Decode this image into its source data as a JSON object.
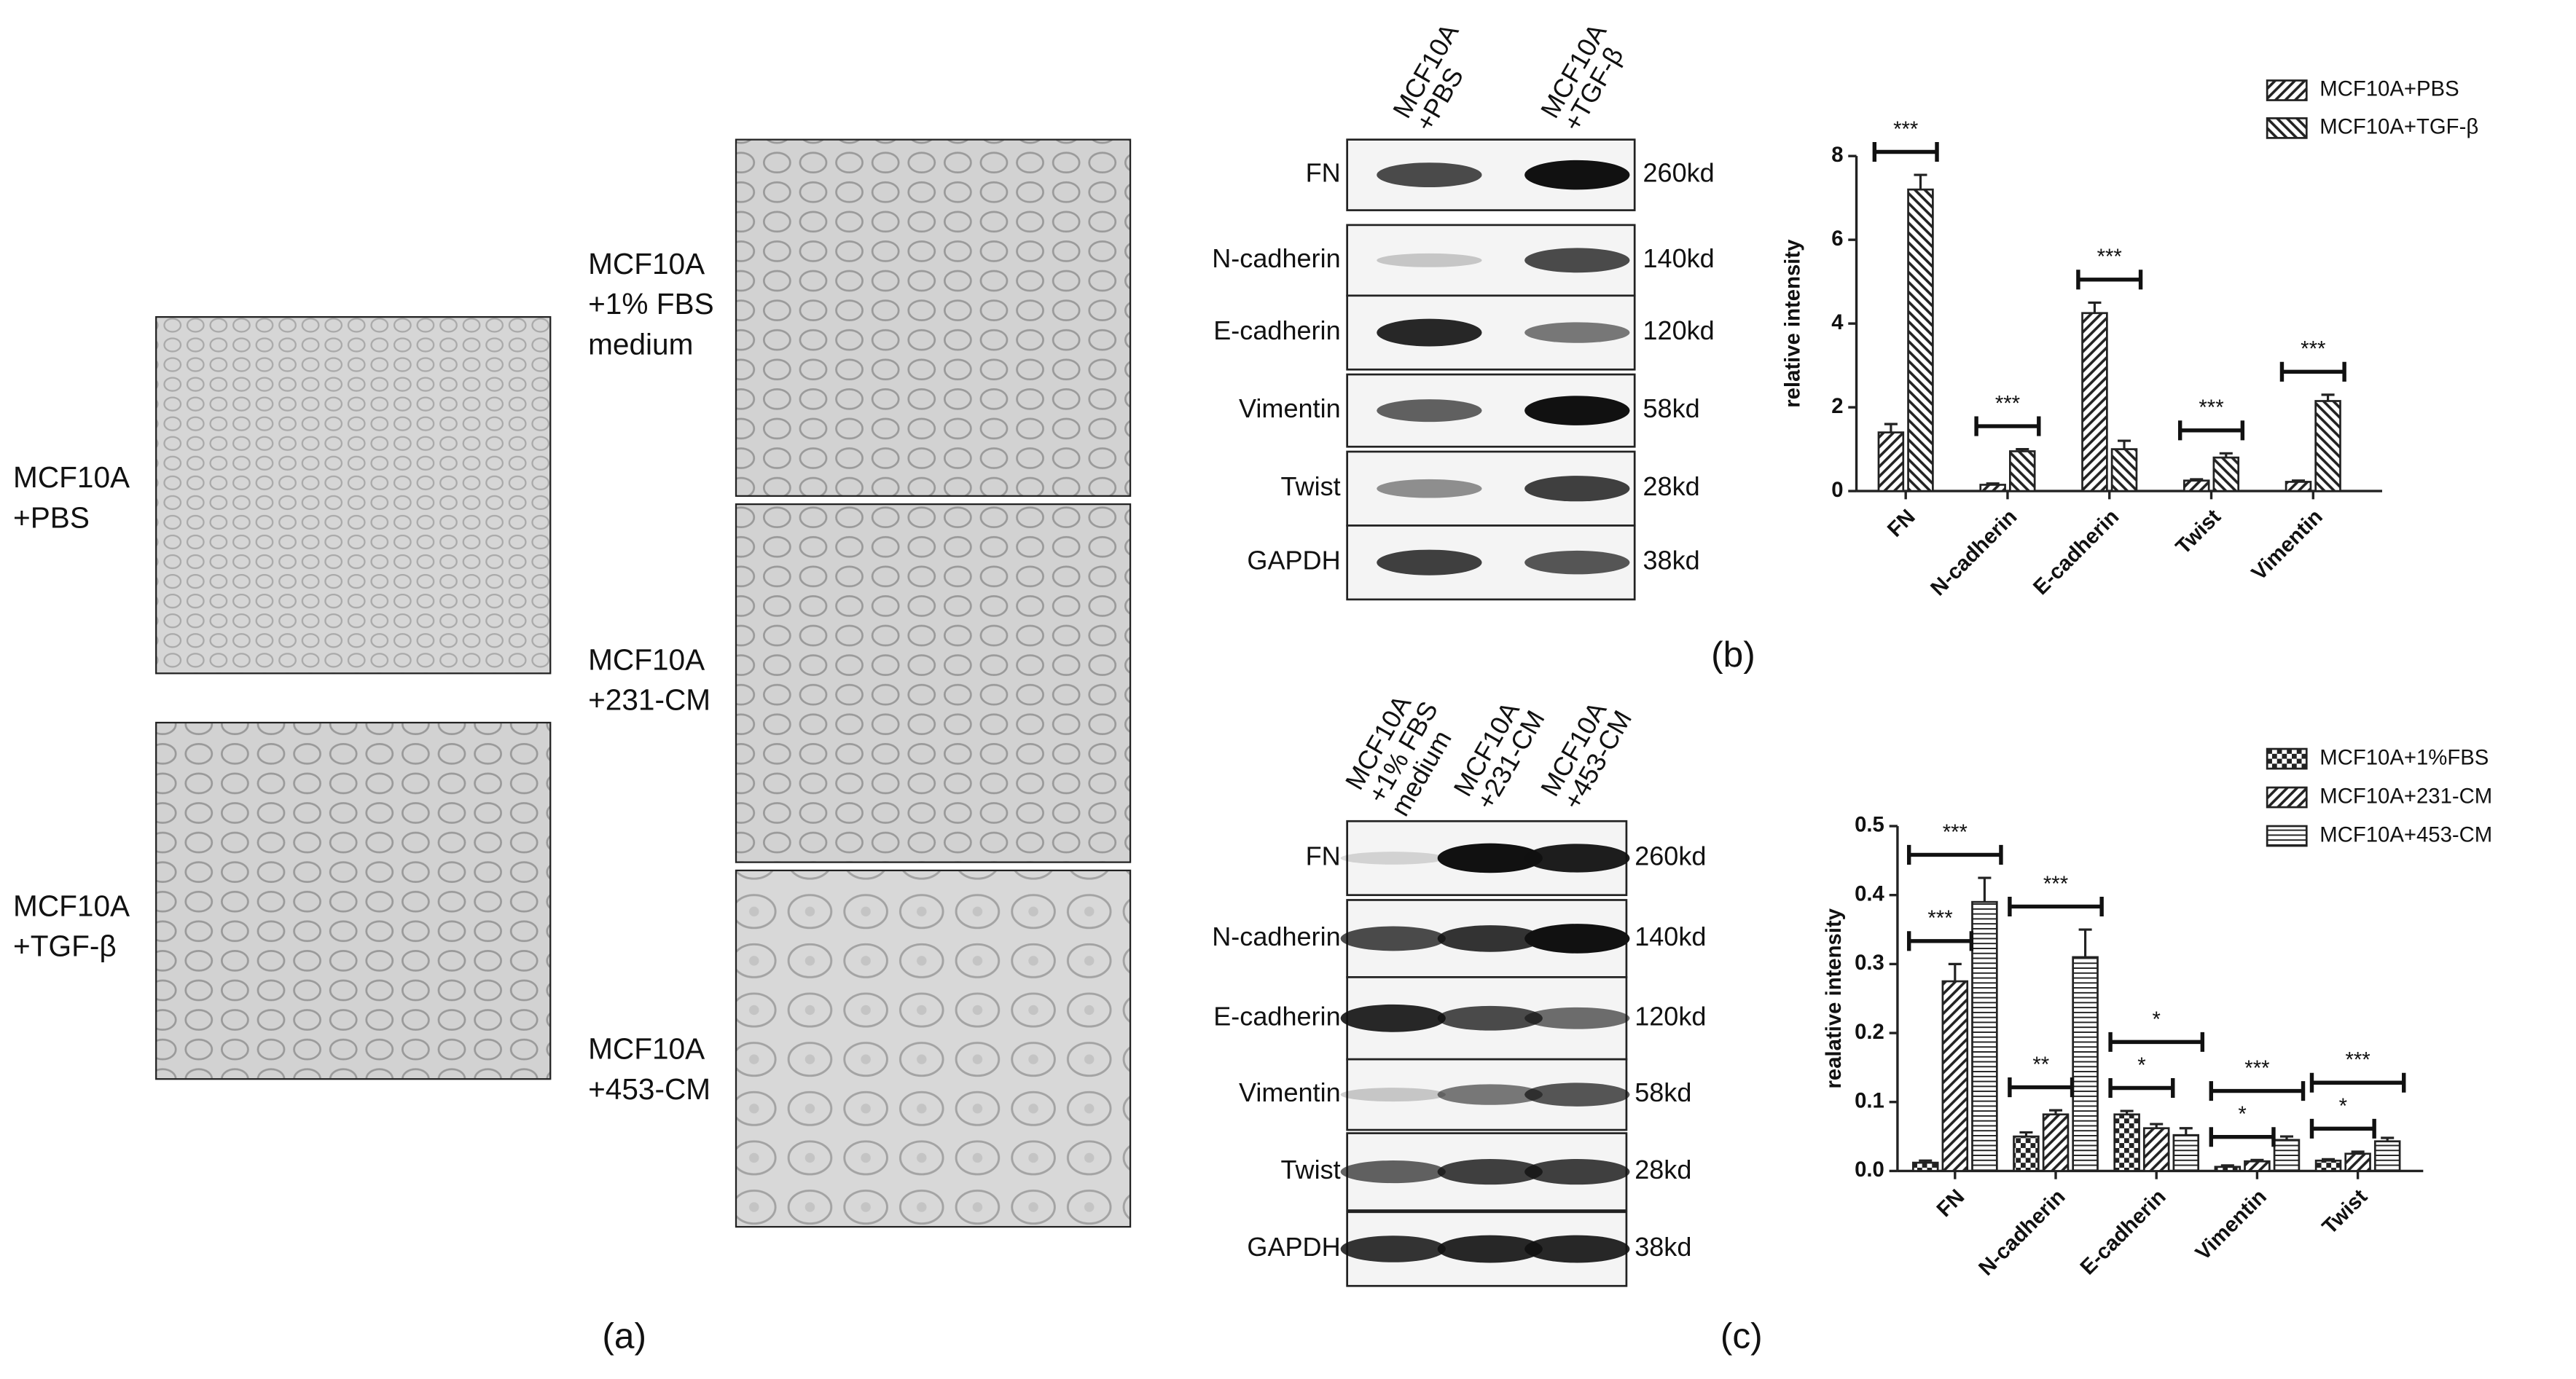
{
  "panel_a": {
    "label": "(a)",
    "images": [
      {
        "caption": [
          "MCF10A",
          "+PBS"
        ]
      },
      {
        "caption": [
          "MCF10A",
          "+TGF-β"
        ]
      },
      {
        "caption": [
          "MCF10A",
          "+1% FBS",
          "medium"
        ]
      },
      {
        "caption": [
          "MCF10A",
          "+231-CM"
        ]
      },
      {
        "caption": [
          "MCF10A",
          "+453-CM"
        ]
      }
    ]
  },
  "blot_b": {
    "label": "(b)",
    "lanes": [
      [
        "MCF10A",
        "+PBS"
      ],
      [
        "MCF10A",
        "+TGF-β"
      ]
    ],
    "proteins": [
      "FN",
      "N-cadherin",
      "E-cadherin",
      "Vimentin",
      "Twist",
      "GAPDH"
    ],
    "sizes": [
      "260kd",
      "140kd",
      "120kd",
      "58kd",
      "28kd",
      "38kd"
    ]
  },
  "blot_c": {
    "label": "(c)",
    "lanes": [
      [
        "MCF10A",
        "+1% FBS",
        "medium"
      ],
      [
        "MCF10A",
        "+231-CM"
      ],
      [
        "MCF10A",
        "+453-CM"
      ]
    ],
    "proteins": [
      "FN",
      "N-cadherin",
      "E-cadherin",
      "Vimentin",
      "Twist",
      "GAPDH"
    ],
    "sizes": [
      "260kd",
      "140kd",
      "120kd",
      "58kd",
      "28kd",
      "38kd"
    ]
  },
  "chart_data": [
    {
      "type": "bar",
      "ylabel": "relative intensity",
      "categories": [
        "FN",
        "N-cadherin",
        "E-cadherin",
        "Twist",
        "Vimentin"
      ],
      "series": [
        {
          "name": "MCF10A+PBS",
          "color": "#222222",
          "pattern": "hatch-right",
          "values": [
            1.4,
            0.15,
            4.25,
            0.25,
            0.22
          ],
          "errors": [
            0.2,
            0.03,
            0.25,
            0.03,
            0.03
          ]
        },
        {
          "name": "MCF10A+TGF-β",
          "color": "#222222",
          "pattern": "hatch-left",
          "values": [
            7.2,
            0.95,
            1.0,
            0.8,
            2.15
          ],
          "errors": [
            0.35,
            0.05,
            0.2,
            0.1,
            0.15
          ]
        }
      ],
      "significance": [
        [
          "***"
        ],
        [
          "***"
        ],
        [
          "***"
        ],
        [
          "***"
        ],
        [
          "***"
        ]
      ],
      "ylim": [
        0,
        8
      ],
      "yticks": [
        0,
        2,
        4,
        6,
        8
      ],
      "legend": "top-right"
    },
    {
      "type": "bar",
      "ylabel": "realative intensity",
      "categories": [
        "FN",
        "N-cadherin",
        "E-cadherin",
        "Vimentin",
        "Twist"
      ],
      "series": [
        {
          "name": "MCF10A+1%FBS",
          "color": "#222222",
          "pattern": "checker",
          "values": [
            0.012,
            0.05,
            0.082,
            0.006,
            0.015
          ],
          "errors": [
            0.003,
            0.006,
            0.005,
            0.002,
            0.002
          ]
        },
        {
          "name": "MCF10A+231-CM",
          "color": "#222222",
          "pattern": "hatch-right",
          "values": [
            0.275,
            0.082,
            0.062,
            0.014,
            0.025
          ],
          "errors": [
            0.025,
            0.006,
            0.006,
            0.002,
            0.003
          ]
        },
        {
          "name": "MCF10A+453-CM",
          "color": "#222222",
          "pattern": "horizontal",
          "values": [
            0.39,
            0.31,
            0.052,
            0.045,
            0.043
          ],
          "errors": [
            0.035,
            0.04,
            0.01,
            0.005,
            0.005
          ]
        }
      ],
      "significance": [
        [
          "***",
          "***"
        ],
        [
          "**",
          "***"
        ],
        [
          "*",
          "*"
        ],
        [
          "*",
          "***"
        ],
        [
          "*",
          "***"
        ]
      ],
      "ylim": [
        0,
        0.5
      ],
      "yticks": [
        {
          "value": 0,
          "label": "0.0"
        },
        0.1,
        0.2,
        0.3,
        0.4,
        0.5
      ],
      "legend": "top-right"
    }
  ]
}
